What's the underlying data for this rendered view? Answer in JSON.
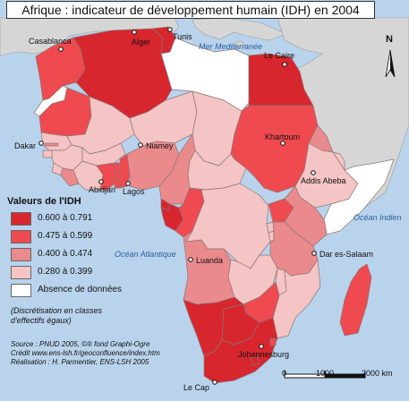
{
  "title": "Afrique : indicateur de développement humain (IDH) en 2004",
  "cities": [
    {
      "name": "Casablanca"
    },
    {
      "name": "Alger"
    },
    {
      "name": "Tunis"
    },
    {
      "name": "Le Caire"
    },
    {
      "name": "Dakar"
    },
    {
      "name": "Niamey"
    },
    {
      "name": "Khartoum"
    },
    {
      "name": "Addis Abeba"
    },
    {
      "name": "Abidjan"
    },
    {
      "name": "Lagos"
    },
    {
      "name": "Luanda"
    },
    {
      "name": "Dar es-Salaam"
    },
    {
      "name": "Johannesburg"
    },
    {
      "name": "Le Cap"
    }
  ],
  "water_labels": {
    "mediterranean": "Mer Mediterranée",
    "indian": "Océan Indien",
    "atlantic": "Océan Atlantique"
  },
  "north_label": "N",
  "legend": {
    "title": "Valeurs de l'IDH",
    "classes": [
      {
        "label": "0.600 à 0.791",
        "color": "#d7262e"
      },
      {
        "label": "0.475 à 0.599",
        "color": "#ef4a4f"
      },
      {
        "label": "0.400 à 0.474",
        "color": "#eb8a8c"
      },
      {
        "label": "0.280 à 0.399",
        "color": "#f5c4c4"
      },
      {
        "label": "Absence de données",
        "color": "#ffffff"
      }
    ],
    "note": "(Discrétisation en classes d'effectifs égaux)"
  },
  "credits": {
    "source": "Source : PNUD 2005, ©® fond Graphi-Ogre",
    "credit": "Crédit www.ens-lsh.fr/geoconfluence/index.htm",
    "realisation": "Réalisation : H. Parmentier, ENS-LSH 2005"
  },
  "scale": {
    "ticks": [
      "0",
      "1000",
      "2000 km"
    ]
  },
  "colors": {
    "sea": "#b9d3ec",
    "outside_land": "#d6d6d6",
    "border": "#8a7777"
  }
}
